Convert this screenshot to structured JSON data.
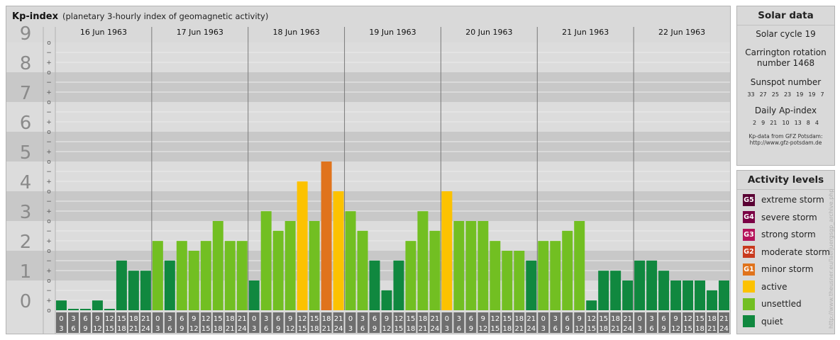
{
  "header": {
    "title": "Kp-index",
    "subtitle": "(planetary 3-hourly index of geomagnetic activity)"
  },
  "chart_data": {
    "type": "bar",
    "ylim": [
      0,
      9
    ],
    "y_ticks": [
      "0",
      "1",
      "2",
      "3",
      "4",
      "5",
      "6",
      "7",
      "8",
      "9"
    ],
    "minor_marks": [
      "+",
      "o",
      "−"
    ],
    "days": [
      "16 Jun 1963",
      "17 Jun 1963",
      "18 Jun 1963",
      "19 Jun 1963",
      "20 Jun 1963",
      "21 Jun 1963",
      "22 Jun 1963"
    ],
    "interval_starts": [
      "0",
      "3",
      "6",
      "9",
      "12",
      "15",
      "18",
      "21"
    ],
    "interval_ends": [
      "3",
      "6",
      "9",
      "12",
      "15",
      "18",
      "21",
      "24"
    ],
    "values": [
      0.33,
      0,
      0,
      0.33,
      0,
      1.67,
      1.33,
      1.33,
      2.33,
      1.67,
      2.33,
      2,
      2.33,
      3,
      2.33,
      2.33,
      1,
      3.33,
      2.67,
      3,
      4.33,
      3,
      5,
      4,
      3.33,
      2.67,
      1.67,
      0.67,
      1.67,
      2.33,
      3.33,
      2.67,
      4,
      3,
      3,
      3,
      2.33,
      2,
      2,
      1.67,
      2.33,
      2.33,
      2.67,
      3,
      0.33,
      1.33,
      1.33,
      1,
      1.67,
      1.67,
      1.33,
      1,
      1,
      1,
      0.67,
      1
    ],
    "colors": {
      "quiet": "#10883f",
      "unsettled": "#72bf22",
      "active": "#fcc200",
      "minor_storm": "#e0731c"
    }
  },
  "solar": {
    "title": "Solar data",
    "cycle": "Solar cycle 19",
    "carrington_1": "Carrington rotation",
    "carrington_2": "number 1468",
    "sunspot_title": "Sunspot number",
    "sunspot_values": [
      "33",
      "27",
      "25",
      "23",
      "19",
      "19",
      "7"
    ],
    "ap_title": "Daily Ap-index",
    "ap_values": [
      "2",
      "9",
      "21",
      "10",
      "13",
      "8",
      "4"
    ],
    "credit_1": "Kp-data from GFZ Potsdam:",
    "credit_2": "http://www.gfz-potsdam.de"
  },
  "levels": {
    "title": "Activity levels",
    "items": [
      {
        "code": "G5",
        "label": "extreme storm",
        "color": "#5a0033"
      },
      {
        "code": "G4",
        "label": "severe storm",
        "color": "#7a0044"
      },
      {
        "code": "G3",
        "label": "strong storm",
        "color": "#b5125a"
      },
      {
        "code": "G2",
        "label": "moderate storm",
        "color": "#c83a1e"
      },
      {
        "code": "G1",
        "label": "minor storm",
        "color": "#e0731c"
      },
      {
        "code": "",
        "label": "active",
        "color": "#fcc200"
      },
      {
        "code": "",
        "label": "unsettled",
        "color": "#72bf22"
      },
      {
        "code": "",
        "label": "quiet",
        "color": "#10883f"
      }
    ]
  },
  "watermark": "http://www.theusner.eu/laerjuergsgp_archive.php"
}
